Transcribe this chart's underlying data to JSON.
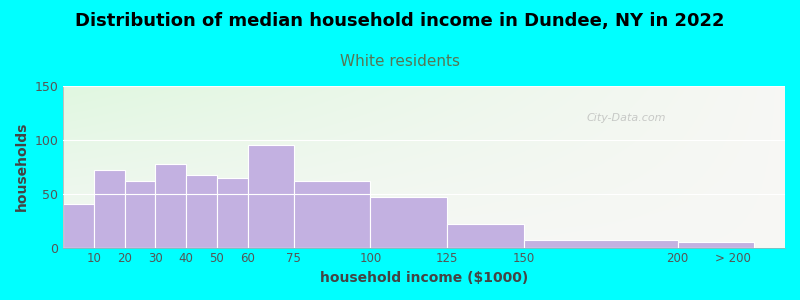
{
  "title": "Distribution of median household income in Dundee, NY in 2022",
  "subtitle": "White residents",
  "xlabel": "household income ($1000)",
  "ylabel": "households",
  "background_outer": "#00FFFF",
  "bar_color": "#C3B1E1",
  "bar_edge_color": "#FFFFFF",
  "title_fontsize": 13,
  "subtitle_fontsize": 11,
  "subtitle_color": "#557755",
  "xlabel_fontsize": 10,
  "ylabel_fontsize": 10,
  "ylim": [
    0,
    150
  ],
  "yticks": [
    0,
    50,
    100,
    150
  ],
  "watermark": "City-Data.com",
  "categories": [
    "10",
    "20",
    "30",
    "40",
    "50",
    "60",
    "75",
    "100",
    "125",
    "150",
    "200",
    "> 200"
  ],
  "values": [
    40,
    72,
    62,
    78,
    67,
    65,
    95,
    62,
    47,
    22,
    7,
    5
  ],
  "x_left_edges": [
    0,
    10,
    20,
    30,
    40,
    50,
    60,
    75,
    100,
    125,
    150,
    200
  ],
  "x_right_edges": [
    10,
    20,
    30,
    40,
    50,
    60,
    75,
    100,
    125,
    150,
    200,
    225
  ],
  "xtick_positions": [
    10,
    20,
    30,
    40,
    50,
    60,
    75,
    100,
    125,
    150,
    200
  ],
  "xtick_labels": [
    "10",
    "20",
    "30",
    "40",
    "50",
    "60",
    "75",
    "100",
    "125",
    "150",
    "200"
  ],
  "xlim": [
    0,
    235
  ]
}
